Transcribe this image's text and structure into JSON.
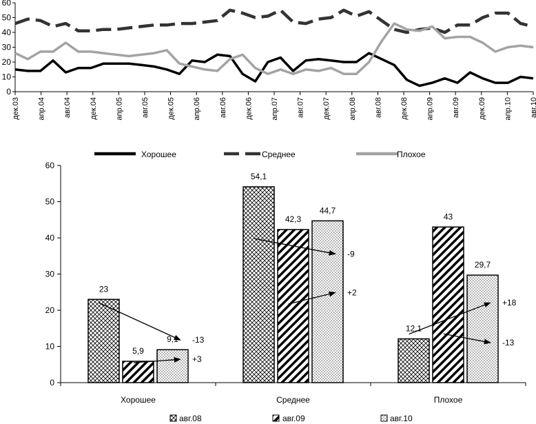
{
  "chart_data": [
    {
      "type": "line",
      "title": "",
      "xlabel": "",
      "ylabel": "",
      "ylim": [
        0,
        60
      ],
      "yticks": [
        0,
        10,
        20,
        30,
        40,
        50,
        60
      ],
      "x_tick_labels": [
        "дек.03",
        "апр.04",
        "авг.04",
        "дек.04",
        "апр.05",
        "авг.05",
        "дек.05",
        "апр.06",
        "авг.06",
        "дек.06",
        "апр.07",
        "авг.07",
        "дек.07",
        "апр.08",
        "авг.08",
        "дек.08",
        "апр.09",
        "авг.09",
        "дек.09",
        "апр.10",
        "авг.10"
      ],
      "legend": [
        "Хорошее",
        "Среднее",
        "Плохое"
      ],
      "series": [
        {
          "name": "Хорошее",
          "color": "#000000",
          "style": "solid",
          "values": [
            15,
            14,
            14,
            21,
            13,
            16,
            16,
            19,
            19,
            19,
            18,
            17,
            15,
            12,
            21,
            20,
            25,
            24,
            12,
            7,
            20,
            23,
            14,
            21,
            22,
            21,
            20,
            20,
            26,
            22,
            18,
            8,
            4,
            6,
            9,
            6,
            13,
            9,
            6,
            6,
            10,
            9
          ]
        },
        {
          "name": "Среднее",
          "color": "#333333",
          "style": "dashed",
          "values": [
            46,
            49,
            48,
            44,
            46,
            41,
            41,
            42,
            42,
            43,
            44,
            45,
            45,
            46,
            46,
            47,
            48,
            55,
            53,
            50,
            51,
            55,
            47,
            46,
            49,
            50,
            55,
            51,
            54,
            48,
            42,
            40,
            42,
            43,
            40,
            45,
            45,
            50,
            53,
            53,
            46,
            44
          ]
        },
        {
          "name": "Плохое",
          "color": "#a3a3a3",
          "style": "solid",
          "values": [
            26,
            22,
            27,
            27,
            33,
            27,
            27,
            26,
            25,
            24,
            25,
            26,
            28,
            19,
            17,
            15,
            14,
            22,
            25,
            16,
            12,
            15,
            12,
            15,
            14,
            16,
            12,
            12,
            20,
            34,
            46,
            42,
            41,
            44,
            36,
            37,
            37,
            33,
            27,
            30,
            31,
            30
          ]
        }
      ]
    },
    {
      "type": "bar",
      "title": "",
      "xlabel": "",
      "ylabel": "",
      "ylim": [
        0,
        60
      ],
      "yticks": [
        0,
        10,
        20,
        30,
        40,
        50,
        60
      ],
      "categories": [
        "Хорошее",
        "Среднее",
        "Плохое"
      ],
      "series": [
        {
          "name": "авг.08",
          "pattern": "crosshatch",
          "values": [
            23,
            54.1,
            12.1
          ],
          "labels": [
            "23",
            "54,1",
            "12,1"
          ]
        },
        {
          "name": "авг.09",
          "pattern": "diagonal",
          "values": [
            5.9,
            42.3,
            43
          ],
          "labels": [
            "5,9",
            "42,3",
            "43"
          ]
        },
        {
          "name": "авг.10",
          "pattern": "dots",
          "values": [
            9.1,
            44.7,
            29.7
          ],
          "labels": [
            "9,1",
            "44,7",
            "29,7"
          ]
        }
      ],
      "annotations": [
        {
          "category": "Хорошее",
          "from_series": 0,
          "to_series": 2,
          "text": "-13"
        },
        {
          "category": "Хорошее",
          "from_series": 1,
          "to_series": 2,
          "text": "+3"
        },
        {
          "category": "Среднее",
          "from_series": 0,
          "to_series": 2,
          "text": "-9"
        },
        {
          "category": "Среднее",
          "from_series": 1,
          "to_series": 2,
          "text": "+2"
        },
        {
          "category": "Плохое",
          "from_series": 0,
          "to_series": 2,
          "text": "+18"
        },
        {
          "category": "Плохое",
          "from_series": 1,
          "to_series": 2,
          "text": "-13"
        }
      ]
    }
  ]
}
